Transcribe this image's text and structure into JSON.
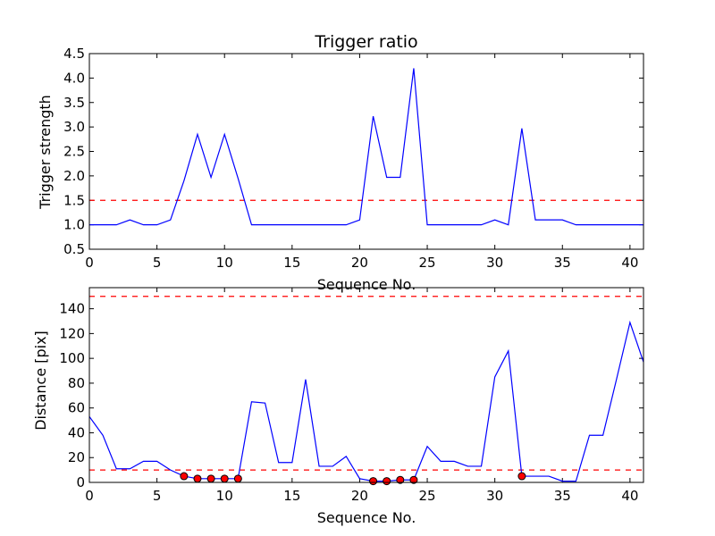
{
  "chart_data": [
    {
      "type": "line",
      "title": "Trigger ratio",
      "xlabel": "Sequence No.",
      "ylabel": "Trigger strength",
      "xlim": [
        0,
        41
      ],
      "ylim": [
        0.5,
        4.5
      ],
      "xticks": [
        0,
        5,
        10,
        15,
        20,
        25,
        30,
        35,
        40
      ],
      "yticks": [
        0.5,
        1.0,
        1.5,
        2.0,
        2.5,
        3.0,
        3.5,
        4.0,
        4.5
      ],
      "xtick_labels": [
        "0",
        "5",
        "10",
        "15",
        "20",
        "25",
        "30",
        "35",
        "40"
      ],
      "ytick_labels": [
        "0.5",
        "1.0",
        "1.5",
        "2.0",
        "2.5",
        "3.0",
        "3.5",
        "4.0",
        "4.5"
      ],
      "grid": false,
      "series": [
        {
          "color": "#0000ff",
          "x": [
            0,
            1,
            2,
            3,
            4,
            5,
            6,
            7,
            8,
            9,
            10,
            11,
            12,
            13,
            14,
            15,
            16,
            17,
            18,
            19,
            20,
            21,
            22,
            23,
            24,
            25,
            26,
            27,
            28,
            29,
            30,
            31,
            32,
            33,
            34,
            35,
            36,
            37,
            38,
            39,
            40,
            41
          ],
          "y": [
            1.0,
            1.0,
            1.0,
            1.1,
            1.0,
            1.0,
            1.1,
            1.9,
            2.85,
            1.97,
            2.85,
            1.95,
            1.0,
            1.0,
            1.0,
            1.0,
            1.0,
            1.0,
            1.0,
            1.0,
            1.1,
            3.22,
            1.97,
            1.97,
            4.2,
            1.0,
            1.0,
            1.0,
            1.0,
            1.0,
            1.1,
            1.0,
            2.97,
            1.1,
            1.1,
            1.1,
            1.0,
            1.0,
            1.0,
            1.0,
            1.0,
            1.0
          ]
        }
      ],
      "threshold": {
        "y": 1.5,
        "color": "#ff0000",
        "style": "dashed"
      }
    },
    {
      "type": "line",
      "title": "",
      "xlabel": "Sequence No.",
      "ylabel": "Distance [pix]",
      "xlim": [
        0,
        41
      ],
      "ylim": [
        0,
        157
      ],
      "xticks": [
        0,
        5,
        10,
        15,
        20,
        25,
        30,
        35,
        40
      ],
      "yticks": [
        0,
        20,
        40,
        60,
        80,
        100,
        120,
        140
      ],
      "xtick_labels": [
        "0",
        "5",
        "10",
        "15",
        "20",
        "25",
        "30",
        "35",
        "40"
      ],
      "ytick_labels": [
        "0",
        "20",
        "40",
        "60",
        "80",
        "100",
        "120",
        "140"
      ],
      "grid": false,
      "series": [
        {
          "color": "#0000ff",
          "x": [
            0,
            1,
            2,
            3,
            4,
            5,
            6,
            7,
            8,
            9,
            10,
            11,
            12,
            13,
            14,
            15,
            16,
            17,
            18,
            19,
            20,
            21,
            22,
            23,
            24,
            25,
            26,
            27,
            28,
            29,
            30,
            31,
            32,
            33,
            34,
            35,
            36,
            37,
            38,
            39,
            40,
            41
          ],
          "y": [
            53,
            38,
            11,
            11,
            17,
            17,
            10,
            5,
            3,
            3,
            3,
            3,
            65,
            64,
            16,
            16,
            83,
            13,
            13,
            21,
            3,
            1,
            1,
            2,
            2,
            29,
            17,
            17,
            13,
            13,
            85,
            106,
            5,
            5,
            5,
            1,
            1,
            38,
            38,
            83,
            129,
            97
          ]
        }
      ],
      "markers": {
        "color": "#ff0000",
        "x": [
          7,
          8,
          9,
          10,
          11,
          21,
          22,
          23,
          24,
          32
        ],
        "y": [
          5,
          3,
          3,
          3,
          3,
          1,
          1,
          2,
          2,
          5
        ]
      },
      "thresholds": [
        {
          "y": 10,
          "color": "#ff0000",
          "style": "dashed"
        },
        {
          "y": 150,
          "color": "#ff0000",
          "style": "dashed"
        }
      ]
    }
  ]
}
